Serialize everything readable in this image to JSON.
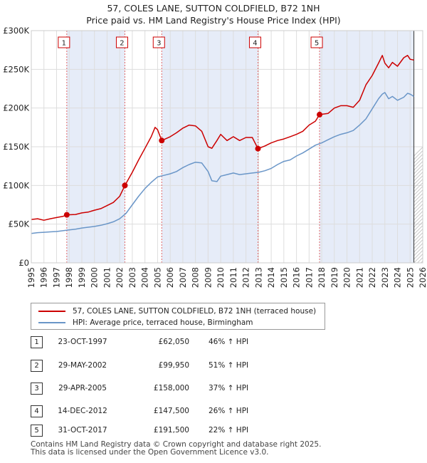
{
  "chart_data": {
    "type": "line",
    "title": "57, COLES LANE, SUTTON COLDFIELD, B72 1NH",
    "subtitle": "Price paid vs. HM Land Registry's House Price Index (HPI)",
    "xlim": [
      1995,
      2026
    ],
    "ylim": [
      0,
      300000
    ],
    "x_ticks": [
      "1995",
      "1996",
      "1997",
      "1998",
      "1999",
      "2000",
      "2001",
      "2002",
      "2003",
      "2004",
      "2005",
      "2006",
      "2007",
      "2008",
      "2009",
      "2010",
      "2011",
      "2012",
      "2013",
      "2014",
      "2015",
      "2016",
      "2017",
      "2018",
      "2019",
      "2020",
      "2021",
      "2022",
      "2023",
      "2024",
      "2025",
      "2026"
    ],
    "y_ticks": [
      {
        "value": 0,
        "label": "£0"
      },
      {
        "value": 50000,
        "label": "£50K"
      },
      {
        "value": 100000,
        "label": "£100K"
      },
      {
        "value": 150000,
        "label": "£150K"
      },
      {
        "value": 200000,
        "label": "£200K"
      },
      {
        "value": 250000,
        "label": "£250K"
      },
      {
        "value": 300000,
        "label": "£300K"
      }
    ],
    "data_end": 2025.3,
    "series": [
      {
        "name": "57, COLES LANE, SUTTON COLDFIELD, B72 1NH (terraced house)",
        "color": "#cc0000",
        "x": [
          1995.0,
          1995.5,
          1996.0,
          1996.5,
          1997.0,
          1997.5,
          1997.81,
          1998.5,
          1999.0,
          1999.5,
          2000.0,
          2000.5,
          2001.0,
          2001.5,
          2002.0,
          2002.41,
          2003.0,
          2003.5,
          2004.0,
          2004.5,
          2004.8,
          2005.0,
          2005.33,
          2006.0,
          2006.5,
          2007.0,
          2007.5,
          2008.0,
          2008.5,
          2009.0,
          2009.3,
          2009.7,
          2010.0,
          2010.5,
          2011.0,
          2011.5,
          2012.0,
          2012.5,
          2012.95,
          2013.5,
          2014.0,
          2014.5,
          2015.0,
          2015.5,
          2016.0,
          2016.5,
          2017.0,
          2017.5,
          2017.83,
          2018.5,
          2019.0,
          2019.5,
          2020.0,
          2020.5,
          2021.0,
          2021.5,
          2022.0,
          2022.5,
          2022.8,
          2023.0,
          2023.3,
          2023.6,
          2024.0,
          2024.5,
          2024.8,
          2025.0,
          2025.3
        ],
        "y": [
          56000,
          57000,
          55000,
          57000,
          58500,
          60000,
          62050,
          62500,
          64500,
          65500,
          68000,
          70000,
          74000,
          78000,
          86000,
          99950,
          117000,
          133000,
          148000,
          163000,
          175000,
          172000,
          158000,
          163000,
          168000,
          174000,
          178000,
          177000,
          170000,
          150000,
          148000,
          158000,
          166000,
          158000,
          163000,
          158000,
          162000,
          162000,
          147500,
          151000,
          155000,
          158000,
          160000,
          163000,
          166000,
          170000,
          178000,
          183000,
          191500,
          193000,
          200000,
          203000,
          203000,
          201000,
          210000,
          230000,
          242000,
          258000,
          268000,
          258000,
          252000,
          259000,
          254000,
          265000,
          268000,
          263000,
          262000
        ]
      },
      {
        "name": "HPI: Average price, terraced house, Birmingham",
        "color": "#6a96c8",
        "x": [
          1995.0,
          1995.5,
          1996.0,
          1996.5,
          1997.0,
          1997.5,
          1998.0,
          1998.5,
          1999.0,
          1999.5,
          2000.0,
          2000.5,
          2001.0,
          2001.5,
          2002.0,
          2002.5,
          2003.0,
          2003.5,
          2004.0,
          2004.5,
          2005.0,
          2005.5,
          2006.0,
          2006.5,
          2007.0,
          2007.5,
          2008.0,
          2008.5,
          2009.0,
          2009.3,
          2009.7,
          2010.0,
          2010.5,
          2011.0,
          2011.5,
          2012.0,
          2012.5,
          2013.0,
          2013.5,
          2014.0,
          2014.5,
          2015.0,
          2015.5,
          2016.0,
          2016.5,
          2017.0,
          2017.5,
          2018.0,
          2018.5,
          2019.0,
          2019.5,
          2020.0,
          2020.5,
          2021.0,
          2021.5,
          2022.0,
          2022.5,
          2022.8,
          2023.0,
          2023.3,
          2023.6,
          2024.0,
          2024.5,
          2024.8,
          2025.0,
          2025.3
        ],
        "y": [
          38000,
          39000,
          39500,
          40000,
          40500,
          41500,
          42500,
          43500,
          45000,
          46000,
          47000,
          48500,
          50500,
          53000,
          57000,
          64000,
          75000,
          86000,
          96000,
          104000,
          111000,
          113000,
          115000,
          118000,
          123000,
          127000,
          130000,
          129000,
          118000,
          106000,
          105000,
          112000,
          114000,
          116000,
          114000,
          115000,
          116000,
          117000,
          119000,
          122000,
          127000,
          131000,
          133000,
          138000,
          142000,
          147000,
          152000,
          155000,
          159000,
          163000,
          166000,
          168000,
          171000,
          178000,
          186000,
          199000,
          212000,
          218000,
          220000,
          212000,
          215000,
          210000,
          214000,
          219000,
          218000,
          215000
        ]
      }
    ],
    "sales": [
      {
        "label": "1",
        "x": 1997.81,
        "value": 62050
      },
      {
        "label": "2",
        "x": 2002.41,
        "value": 99950
      },
      {
        "label": "3",
        "x": 2005.33,
        "value": 158000
      },
      {
        "label": "4",
        "x": 2012.95,
        "value": 147500
      },
      {
        "label": "5",
        "x": 2017.83,
        "value": 191500
      }
    ]
  },
  "legend": [
    {
      "label": "57, COLES LANE, SUTTON COLDFIELD, B72 1NH (terraced house)",
      "color": "#cc0000"
    },
    {
      "label": "HPI: Average price, terraced house, Birmingham",
      "color": "#6a96c8"
    }
  ],
  "transactions": [
    {
      "num": "1",
      "date": "23-OCT-1997",
      "price": "£62,050",
      "hpi": "46% ↑ HPI"
    },
    {
      "num": "2",
      "date": "29-MAY-2002",
      "price": "£99,950",
      "hpi": "51% ↑ HPI"
    },
    {
      "num": "3",
      "date": "29-APR-2005",
      "price": "£158,000",
      "hpi": "37% ↑ HPI"
    },
    {
      "num": "4",
      "date": "14-DEC-2012",
      "price": "£147,500",
      "hpi": "26% ↑ HPI"
    },
    {
      "num": "5",
      "date": "31-OCT-2017",
      "price": "£191,500",
      "hpi": "22% ↑ HPI"
    }
  ],
  "footer": {
    "line1": "Contains HM Land Registry data © Crown copyright and database right 2025.",
    "line2": "This data is licensed under the Open Government Licence v3.0."
  },
  "colors": {
    "band": "#e6ecf8",
    "marker_line": "#e06666"
  }
}
